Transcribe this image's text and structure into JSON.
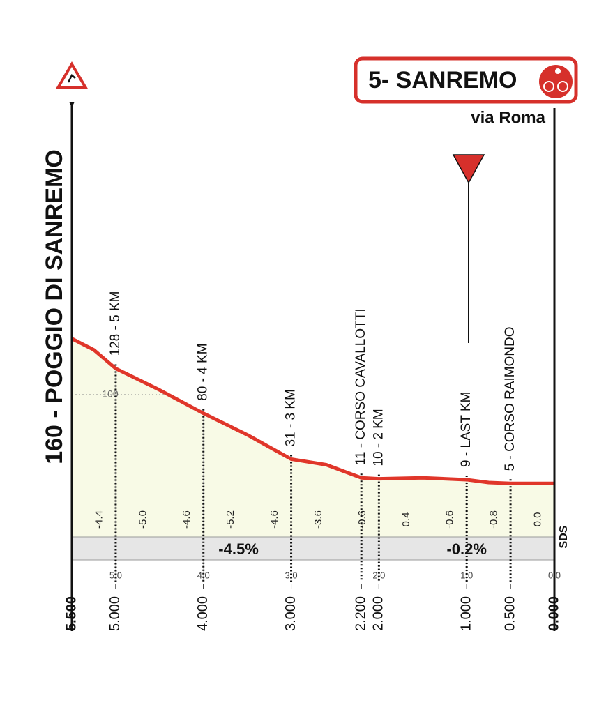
{
  "chart_data": {
    "type": "area",
    "title": "5- SANREMO",
    "subtitle": "via Roma",
    "start_label": "160 - POGGIO DI SANREMO",
    "x": [
      5.5,
      5.25,
      5.0,
      4.5,
      4.0,
      3.5,
      3.0,
      2.6,
      2.2,
      2.0,
      1.5,
      1.0,
      0.75,
      0.5,
      0.0
    ],
    "values": [
      160,
      148,
      128,
      105,
      80,
      57,
      31,
      25,
      11,
      10,
      11,
      9,
      6,
      5,
      5
    ],
    "color": "#e0362a",
    "fill": "#f8fae6",
    "xlim": [
      5.5,
      0
    ],
    "ylim": [
      0,
      400
    ],
    "yticks": [
      100
    ],
    "xticks": [
      {
        "value": 5.5,
        "label": "5.500"
      },
      {
        "value": 5.0,
        "label": "5.000"
      },
      {
        "value": 4.0,
        "label": "4.000"
      },
      {
        "value": 3.0,
        "label": "3.000"
      },
      {
        "value": 2.2,
        "label": "2.200"
      },
      {
        "value": 2.0,
        "label": "2.000"
      },
      {
        "value": 1.0,
        "label": "1.000"
      },
      {
        "value": 0.5,
        "label": "0.500"
      },
      {
        "value": 0,
        "label": "0.000"
      }
    ],
    "grid_ticks": [
      {
        "value": 5,
        "label": "5.0"
      },
      {
        "value": 4,
        "label": "4.0"
      },
      {
        "value": 3,
        "label": "3.0"
      },
      {
        "value": 2,
        "label": "2.0"
      },
      {
        "value": 1,
        "label": "1.0"
      },
      {
        "value": 0,
        "label": "0.0"
      }
    ],
    "markers": [
      {
        "x": 5.0,
        "label": "128 - 5 KM"
      },
      {
        "x": 4.0,
        "label": "80 - 4 KM"
      },
      {
        "x": 3.0,
        "label": "31 - 3 KM"
      },
      {
        "x": 2.2,
        "label": "11 - CORSO CAVALLOTTI"
      },
      {
        "x": 2.0,
        "label": "10 - 2 KM"
      },
      {
        "x": 1.0,
        "label": "9 - LAST KM"
      },
      {
        "x": 0.5,
        "label": "5 - CORSO RAIMONDO"
      }
    ],
    "gradient_labels": [
      "-4.4",
      "-5.0",
      "-4.6",
      "-5.2",
      "-4.6",
      "-3.6",
      "-0.6",
      "0.4",
      "-0.6",
      "-0.8",
      "0.0"
    ],
    "average_gradients": [
      {
        "x": 3.6,
        "label": "-4.5%"
      },
      {
        "x": 1.0,
        "label": "-0.2%"
      }
    ],
    "logo": "SDS"
  }
}
